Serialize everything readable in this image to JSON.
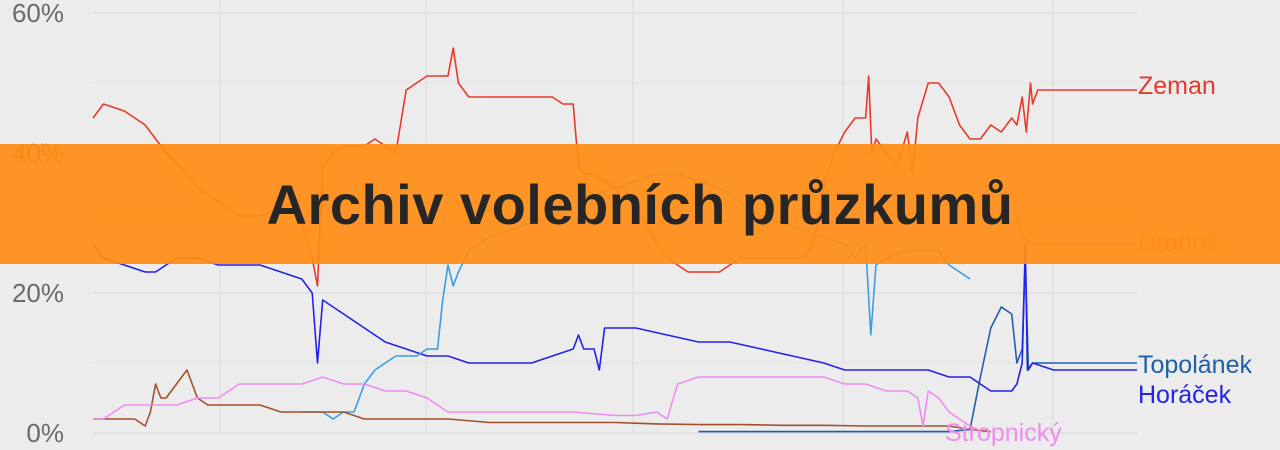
{
  "banner": {
    "title": "Archiv volebních průzkumů"
  },
  "chart_data": {
    "type": "line",
    "yticks": [
      "60%",
      "40%",
      "20%",
      "0%"
    ],
    "ylim": [
      0,
      60
    ],
    "xlim": [
      0,
      100
    ],
    "grid": true,
    "series": [
      {
        "name": "Zeman",
        "color": "#e8392b",
        "points": [
          [
            0,
            45
          ],
          [
            1,
            47
          ],
          [
            3,
            46
          ],
          [
            4,
            45
          ],
          [
            5,
            44
          ],
          [
            7,
            40
          ],
          [
            9,
            37
          ],
          [
            10,
            35
          ],
          [
            12,
            33
          ],
          [
            14,
            31
          ],
          [
            16,
            31
          ],
          [
            18,
            32
          ],
          [
            19,
            33
          ],
          [
            20,
            30
          ],
          [
            21,
            25
          ],
          [
            21.5,
            21
          ],
          [
            22,
            38
          ],
          [
            23,
            40
          ],
          [
            24,
            41
          ],
          [
            25,
            41
          ],
          [
            26,
            41
          ],
          [
            27,
            42
          ],
          [
            28,
            41
          ],
          [
            29,
            40
          ],
          [
            30,
            49
          ],
          [
            31,
            50
          ],
          [
            32,
            51
          ],
          [
            33,
            51
          ],
          [
            34,
            51
          ],
          [
            34.5,
            55
          ],
          [
            35,
            50
          ],
          [
            36,
            48
          ],
          [
            38,
            48
          ],
          [
            40,
            48
          ],
          [
            42,
            48
          ],
          [
            44,
            48
          ],
          [
            45,
            47
          ],
          [
            46,
            47
          ],
          [
            46.5,
            38
          ],
          [
            47,
            37
          ],
          [
            48,
            37
          ],
          [
            49,
            36
          ],
          [
            50,
            35
          ],
          [
            51,
            35
          ],
          [
            52,
            32
          ],
          [
            53,
            30
          ],
          [
            54,
            27
          ],
          [
            55,
            25
          ],
          [
            56,
            24
          ],
          [
            57,
            23
          ],
          [
            58,
            23
          ],
          [
            59,
            23
          ],
          [
            60,
            23
          ],
          [
            61,
            24
          ],
          [
            62,
            25
          ],
          [
            63,
            25
          ],
          [
            64,
            25
          ],
          [
            65,
            25
          ],
          [
            66,
            25
          ],
          [
            67,
            25
          ],
          [
            68,
            25
          ],
          [
            69,
            27
          ],
          [
            70,
            35
          ],
          [
            71,
            40
          ],
          [
            72,
            43
          ],
          [
            73,
            45
          ],
          [
            74,
            45
          ],
          [
            74.3,
            51
          ],
          [
            74.6,
            40
          ],
          [
            75,
            42
          ],
          [
            76,
            40
          ],
          [
            77,
            38
          ],
          [
            78,
            43
          ],
          [
            78.5,
            37
          ],
          [
            79,
            45
          ],
          [
            80,
            50
          ],
          [
            81,
            50
          ],
          [
            82,
            48
          ],
          [
            83,
            44
          ],
          [
            84,
            42
          ],
          [
            85,
            42
          ],
          [
            86,
            44
          ],
          [
            87,
            43
          ],
          [
            88,
            45
          ],
          [
            88.5,
            44
          ],
          [
            89,
            48
          ],
          [
            89.4,
            43
          ],
          [
            89.8,
            50
          ],
          [
            90,
            47
          ],
          [
            90.5,
            49
          ],
          [
            92,
            49
          ],
          [
            94,
            49
          ],
          [
            96,
            49
          ],
          [
            98,
            49
          ],
          [
            100,
            49
          ]
        ]
      },
      {
        "name": "Drahoš",
        "color": "#f07e2f",
        "points": [
          [
            88.5,
            31
          ],
          [
            89,
            28
          ],
          [
            90,
            27
          ],
          [
            92,
            27
          ],
          [
            94,
            27
          ],
          [
            96,
            27
          ],
          [
            98,
            27
          ],
          [
            100,
            27
          ]
        ]
      },
      {
        "name": "Topolánek",
        "color": "#1f5faa",
        "points": [
          [
            58,
            0.2
          ],
          [
            62,
            0.2
          ],
          [
            66,
            0.2
          ],
          [
            70,
            0.2
          ],
          [
            74,
            0.2
          ],
          [
            78,
            0.2
          ],
          [
            82,
            0.2
          ],
          [
            84,
            0.5
          ],
          [
            85,
            8
          ],
          [
            86,
            15
          ],
          [
            87,
            18
          ],
          [
            88,
            17
          ],
          [
            88.5,
            10
          ],
          [
            89,
            12
          ],
          [
            89.3,
            25
          ],
          [
            89.6,
            9
          ],
          [
            90,
            10
          ],
          [
            92,
            10
          ],
          [
            94,
            10
          ],
          [
            96,
            10
          ],
          [
            98,
            10
          ],
          [
            100,
            10
          ]
        ]
      },
      {
        "name": "Horáček",
        "color": "#2323e6",
        "points": [
          [
            0,
            27
          ],
          [
            1,
            25
          ],
          [
            3,
            24
          ],
          [
            5,
            23
          ],
          [
            6,
            23
          ],
          [
            8,
            25
          ],
          [
            10,
            25
          ],
          [
            12,
            24
          ],
          [
            14,
            24
          ],
          [
            16,
            24
          ],
          [
            18,
            23
          ],
          [
            20,
            22
          ],
          [
            21,
            20
          ],
          [
            21.5,
            10
          ],
          [
            22,
            19
          ],
          [
            24,
            17
          ],
          [
            26,
            15
          ],
          [
            28,
            13
          ],
          [
            30,
            12
          ],
          [
            32,
            11
          ],
          [
            34,
            11
          ],
          [
            36,
            10
          ],
          [
            38,
            10
          ],
          [
            40,
            10
          ],
          [
            42,
            10
          ],
          [
            44,
            11
          ],
          [
            46,
            12
          ],
          [
            46.5,
            14
          ],
          [
            47,
            12
          ],
          [
            48,
            12
          ],
          [
            48.5,
            9
          ],
          [
            49,
            15
          ],
          [
            52,
            15
          ],
          [
            55,
            14
          ],
          [
            58,
            13
          ],
          [
            61,
            13
          ],
          [
            64,
            12
          ],
          [
            67,
            11
          ],
          [
            70,
            10
          ],
          [
            72,
            9
          ],
          [
            74,
            9
          ],
          [
            76,
            9
          ],
          [
            78,
            9
          ],
          [
            80,
            9
          ],
          [
            82,
            8
          ],
          [
            84,
            8
          ],
          [
            85,
            7
          ],
          [
            86,
            6
          ],
          [
            87,
            6
          ],
          [
            88,
            6
          ],
          [
            88.5,
            7
          ],
          [
            89,
            10
          ],
          [
            89.3,
            27
          ],
          [
            89.5,
            9
          ],
          [
            90,
            10
          ],
          [
            92,
            9
          ],
          [
            94,
            9
          ],
          [
            96,
            9
          ],
          [
            98,
            9
          ],
          [
            100,
            9
          ]
        ]
      },
      {
        "name": "",
        "color": "#3a9fe0",
        "points": [
          [
            20,
            3
          ],
          [
            22,
            3
          ],
          [
            23,
            2
          ],
          [
            24,
            3
          ],
          [
            25,
            3
          ],
          [
            26,
            7
          ],
          [
            27,
            9
          ],
          [
            28,
            10
          ],
          [
            29,
            11
          ],
          [
            30,
            11
          ],
          [
            31,
            11
          ],
          [
            32,
            12
          ],
          [
            33,
            12
          ],
          [
            33.5,
            19
          ],
          [
            34,
            24
          ],
          [
            34.5,
            21
          ],
          [
            35,
            23
          ],
          [
            36,
            26
          ],
          [
            38,
            28
          ],
          [
            40,
            29
          ],
          [
            42,
            30
          ],
          [
            44,
            31
          ],
          [
            46,
            33
          ],
          [
            48,
            34
          ],
          [
            50,
            35
          ],
          [
            52,
            36
          ],
          [
            54,
            37
          ],
          [
            56,
            37
          ],
          [
            58,
            36
          ],
          [
            60,
            35
          ],
          [
            62,
            33
          ],
          [
            64,
            31
          ],
          [
            66,
            30
          ],
          [
            68,
            29
          ],
          [
            70,
            28
          ],
          [
            72,
            27
          ],
          [
            73,
            25
          ],
          [
            74,
            27
          ],
          [
            74.5,
            14
          ],
          [
            75,
            24
          ],
          [
            76,
            25
          ],
          [
            78,
            26
          ],
          [
            80,
            26
          ],
          [
            81,
            26
          ],
          [
            82,
            24
          ],
          [
            83,
            23
          ],
          [
            84,
            22
          ]
        ]
      },
      {
        "name": "",
        "color": "#a0522d",
        "points": [
          [
            0,
            2
          ],
          [
            2,
            2
          ],
          [
            4,
            2
          ],
          [
            5,
            1
          ],
          [
            5.5,
            3
          ],
          [
            6,
            7
          ],
          [
            6.5,
            5
          ],
          [
            7,
            5
          ],
          [
            8,
            7
          ],
          [
            8.5,
            8
          ],
          [
            9,
            9
          ],
          [
            9.5,
            7
          ],
          [
            10,
            5
          ],
          [
            11,
            4
          ],
          [
            12,
            4
          ],
          [
            14,
            4
          ],
          [
            16,
            4
          ],
          [
            18,
            3
          ],
          [
            20,
            3
          ],
          [
            22,
            3
          ],
          [
            24,
            3
          ],
          [
            26,
            2
          ],
          [
            28,
            2
          ],
          [
            30,
            2
          ],
          [
            34,
            2
          ],
          [
            38,
            1.5
          ],
          [
            42,
            1.5
          ],
          [
            46,
            1.5
          ],
          [
            50,
            1.5
          ],
          [
            54,
            1.3
          ],
          [
            58,
            1.2
          ],
          [
            62,
            1.2
          ],
          [
            66,
            1.1
          ],
          [
            70,
            1.1
          ],
          [
            74,
            1
          ],
          [
            78,
            1
          ],
          [
            82,
            1
          ],
          [
            84,
            0.5
          ],
          [
            86,
            0.2
          ]
        ]
      },
      {
        "name": "Stropnický",
        "color": "#ee8cf0",
        "points": [
          [
            0,
            2
          ],
          [
            1,
            2
          ],
          [
            2,
            3
          ],
          [
            3,
            4
          ],
          [
            4,
            4
          ],
          [
            6,
            4
          ],
          [
            8,
            4
          ],
          [
            10,
            5
          ],
          [
            12,
            5
          ],
          [
            14,
            7
          ],
          [
            16,
            7
          ],
          [
            18,
            7
          ],
          [
            20,
            7
          ],
          [
            22,
            8
          ],
          [
            24,
            7
          ],
          [
            26,
            7
          ],
          [
            28,
            6
          ],
          [
            30,
            6
          ],
          [
            32,
            5
          ],
          [
            34,
            3
          ],
          [
            36,
            3
          ],
          [
            38,
            3
          ],
          [
            42,
            3
          ],
          [
            46,
            3
          ],
          [
            50,
            2.5
          ],
          [
            52,
            2.5
          ],
          [
            54,
            3
          ],
          [
            55,
            2
          ],
          [
            56,
            7
          ],
          [
            58,
            8
          ],
          [
            60,
            8
          ],
          [
            62,
            8
          ],
          [
            66,
            8
          ],
          [
            70,
            8
          ],
          [
            72,
            7
          ],
          [
            74,
            7
          ],
          [
            76,
            6
          ],
          [
            78,
            6
          ],
          [
            79,
            5
          ],
          [
            79.5,
            1
          ],
          [
            80,
            6
          ],
          [
            81,
            5
          ],
          [
            82,
            3
          ],
          [
            83,
            2
          ],
          [
            84,
            1
          ],
          [
            85,
            0.3
          ]
        ]
      }
    ]
  }
}
